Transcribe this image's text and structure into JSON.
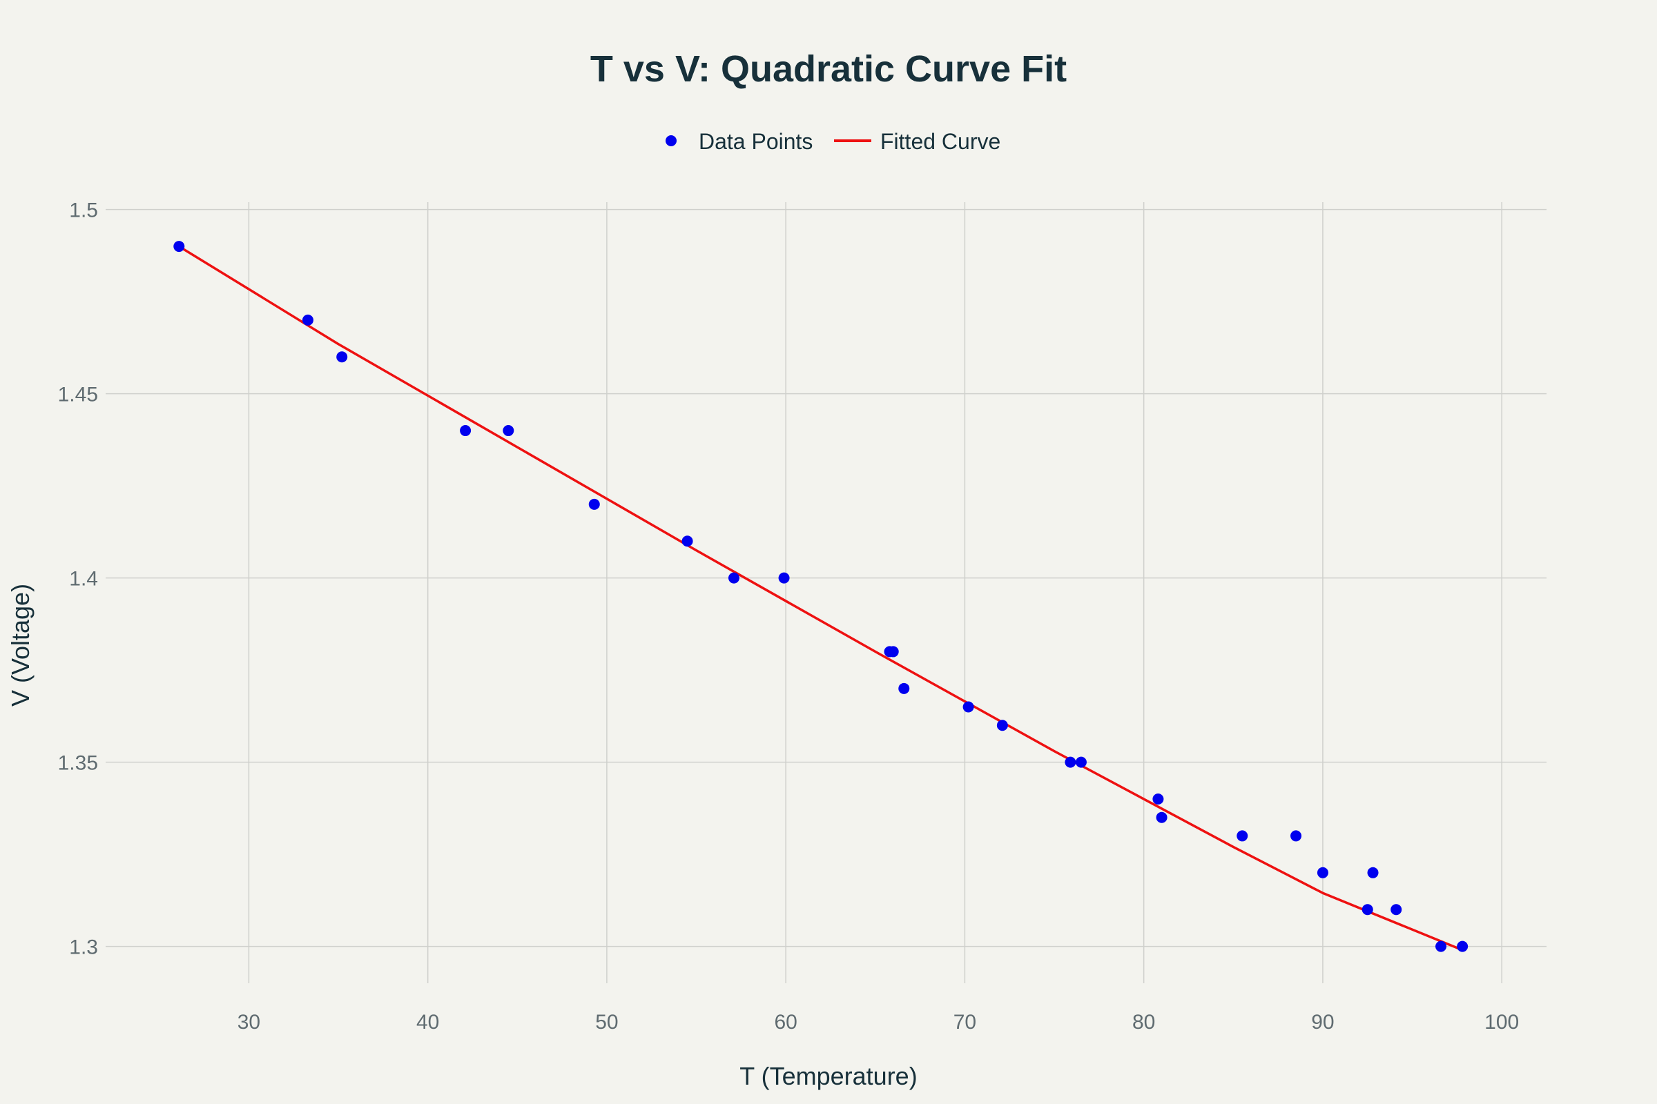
{
  "chart_data": {
    "type": "scatter",
    "title": "T vs V: Quadratic Curve Fit",
    "xlabel": "T (Temperature)",
    "ylabel": "V (Voltage)",
    "xlim": [
      22,
      102.5
    ],
    "ylim": [
      1.29,
      1.502
    ],
    "xticks": [
      30,
      40,
      50,
      60,
      70,
      80,
      90,
      100
    ],
    "yticks": [
      1.3,
      1.35,
      1.4,
      1.45,
      1.5
    ],
    "ytick_labels": [
      "1.3",
      "1.35",
      "1.4",
      "1.45",
      "1.5"
    ],
    "grid": true,
    "legend_position": "top-center",
    "series": [
      {
        "name": "Data Points",
        "kind": "scatter",
        "color": "#0000ee",
        "x": [
          26.1,
          33.3,
          35.2,
          42.1,
          44.5,
          49.3,
          54.5,
          57.1,
          59.9,
          65.8,
          66.0,
          66.6,
          70.2,
          72.1,
          75.9,
          76.5,
          80.8,
          81.0,
          85.5,
          88.5,
          90.0,
          92.5,
          92.8,
          94.1,
          96.6,
          97.8
        ],
        "y": [
          1.49,
          1.47,
          1.46,
          1.44,
          1.44,
          1.42,
          1.41,
          1.4,
          1.4,
          1.38,
          1.38,
          1.37,
          1.365,
          1.36,
          1.35,
          1.35,
          1.34,
          1.335,
          1.33,
          1.33,
          1.32,
          1.31,
          1.32,
          1.31,
          1.3,
          1.3
        ]
      },
      {
        "name": "Fitted Curve",
        "kind": "line",
        "color": "#ee1111",
        "x": [
          26.1,
          35.0,
          45.0,
          55.0,
          65.0,
          75.0,
          85.0,
          90.0,
          97.8
        ],
        "y": [
          1.49,
          1.4635,
          1.4355,
          1.4075,
          1.38,
          1.353,
          1.327,
          1.3145,
          1.299
        ]
      }
    ]
  }
}
